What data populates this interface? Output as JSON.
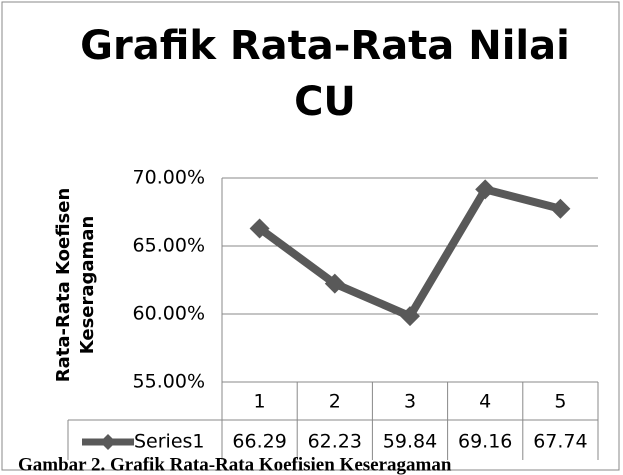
{
  "chart_data": {
    "type": "line",
    "title": [
      "Grafik Rata-Rata Nilai",
      "CU"
    ],
    "ylabel": [
      "Rata-Rata Koefisen",
      "Keseragaman"
    ],
    "categories": [
      "1",
      "2",
      "3",
      "4",
      "5"
    ],
    "series": [
      {
        "name": "Series1",
        "color": "#595959",
        "values": [
          66.29,
          62.23,
          59.84,
          69.16,
          67.74
        ]
      }
    ],
    "ylim": [
      55,
      70
    ],
    "yticks": [
      {
        "value": 55,
        "label": "55.00%"
      },
      {
        "value": 60,
        "label": "60.00%"
      },
      {
        "value": 65,
        "label": "65.00%"
      },
      {
        "value": 70,
        "label": "70.00%"
      }
    ],
    "grid": true,
    "data_table": true,
    "caption": "Gambar 2. Grafik Rata-Rata Koefisien Keseragaman"
  }
}
